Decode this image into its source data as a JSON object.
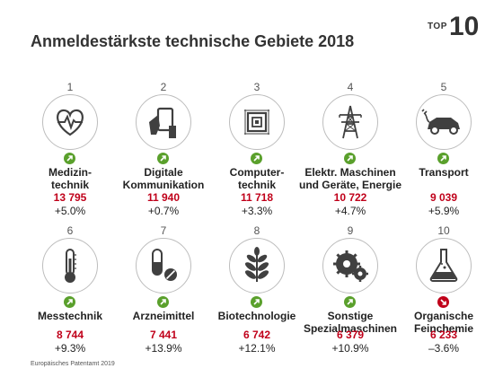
{
  "title": "Anmeldestärkste technische Gebiete 2018",
  "badge": {
    "top": "TOP",
    "number": "10"
  },
  "colors": {
    "up": "#5aa02c",
    "down": "#c0001a",
    "count": "#c0001a",
    "icon": "#404040"
  },
  "items": [
    {
      "rank": "1",
      "name_lines": [
        "Medizin-",
        "technik"
      ],
      "count": "13 795",
      "change": "+5.0%",
      "trend": "up",
      "icon": "heartbeat-icon"
    },
    {
      "rank": "2",
      "name_lines": [
        "Digitale",
        "Kommunikation"
      ],
      "count": "11 940",
      "change": "+0.7%",
      "trend": "up",
      "icon": "tablet-hand-icon"
    },
    {
      "rank": "3",
      "name_lines": [
        "Computer-",
        "technik"
      ],
      "count": "11 718",
      "change": "+3.3%",
      "trend": "up",
      "icon": "chip-icon"
    },
    {
      "rank": "4",
      "name_lines": [
        "Elektr. Maschinen",
        "und Geräte, Energie"
      ],
      "count": "10 722",
      "change": "+4.7%",
      "trend": "up",
      "icon": "power-pylon-icon"
    },
    {
      "rank": "5",
      "name_lines": [
        "Transport"
      ],
      "count": "9 039",
      "change": "+5.9%",
      "trend": "up",
      "icon": "electric-car-icon"
    },
    {
      "rank": "6",
      "name_lines": [
        "Messtechnik"
      ],
      "count": "8 744",
      "change": "+9.3%",
      "trend": "up",
      "icon": "thermometer-icon"
    },
    {
      "rank": "7",
      "name_lines": [
        "Arzneimittel"
      ],
      "count": "7 441",
      "change": "+13.9%",
      "trend": "up",
      "icon": "pill-icon"
    },
    {
      "rank": "8",
      "name_lines": [
        "Biotechnologie"
      ],
      "count": "6 742",
      "change": "+12.1%",
      "trend": "up",
      "icon": "leaf-sprout-icon"
    },
    {
      "rank": "9",
      "name_lines": [
        "Sonstige",
        "Spezialmaschinen"
      ],
      "count": "6 379",
      "change": "+10.9%",
      "trend": "up",
      "icon": "gears-icon"
    },
    {
      "rank": "10",
      "name_lines": [
        "Organische",
        "Feinchemie"
      ],
      "count": "6 233",
      "change": "–3.6%",
      "trend": "down",
      "icon": "flask-icon"
    }
  ],
  "source": "Europäisches Patentamt 2019"
}
